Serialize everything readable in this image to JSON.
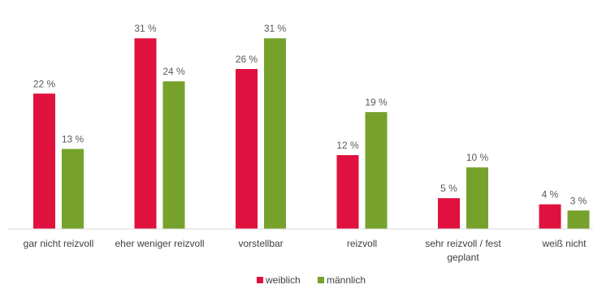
{
  "chart_data": {
    "type": "bar",
    "categories": [
      "gar nicht reizvoll",
      "eher weniger reizvoll",
      "vorstellbar",
      "reizvoll",
      "sehr reizvoll / fest geplant",
      "weiß nicht"
    ],
    "category_lines": [
      [
        "gar nicht reizvoll"
      ],
      [
        "eher weniger reizvoll"
      ],
      [
        "vorstellbar"
      ],
      [
        "reizvoll"
      ],
      [
        "sehr reizvoll / fest",
        "geplant"
      ],
      [
        "weiß nicht"
      ]
    ],
    "series": [
      {
        "name": "weiblich",
        "color": "#E0103F",
        "values": [
          22,
          31,
          26,
          12,
          5,
          4
        ],
        "labels": [
          "22 %",
          "31 %",
          "26 %",
          "12 %",
          "5 %",
          "4 %"
        ]
      },
      {
        "name": "männlich",
        "color": "#76A22C",
        "values": [
          13,
          24,
          31,
          19,
          10,
          3
        ],
        "labels": [
          "13 %",
          "24 %",
          "31 %",
          "19 %",
          "10 %",
          "3 %"
        ]
      }
    ],
    "title": "",
    "xlabel": "",
    "ylabel": "",
    "ylim": [
      0,
      33
    ],
    "grid": false,
    "legend": "bottom-center"
  }
}
